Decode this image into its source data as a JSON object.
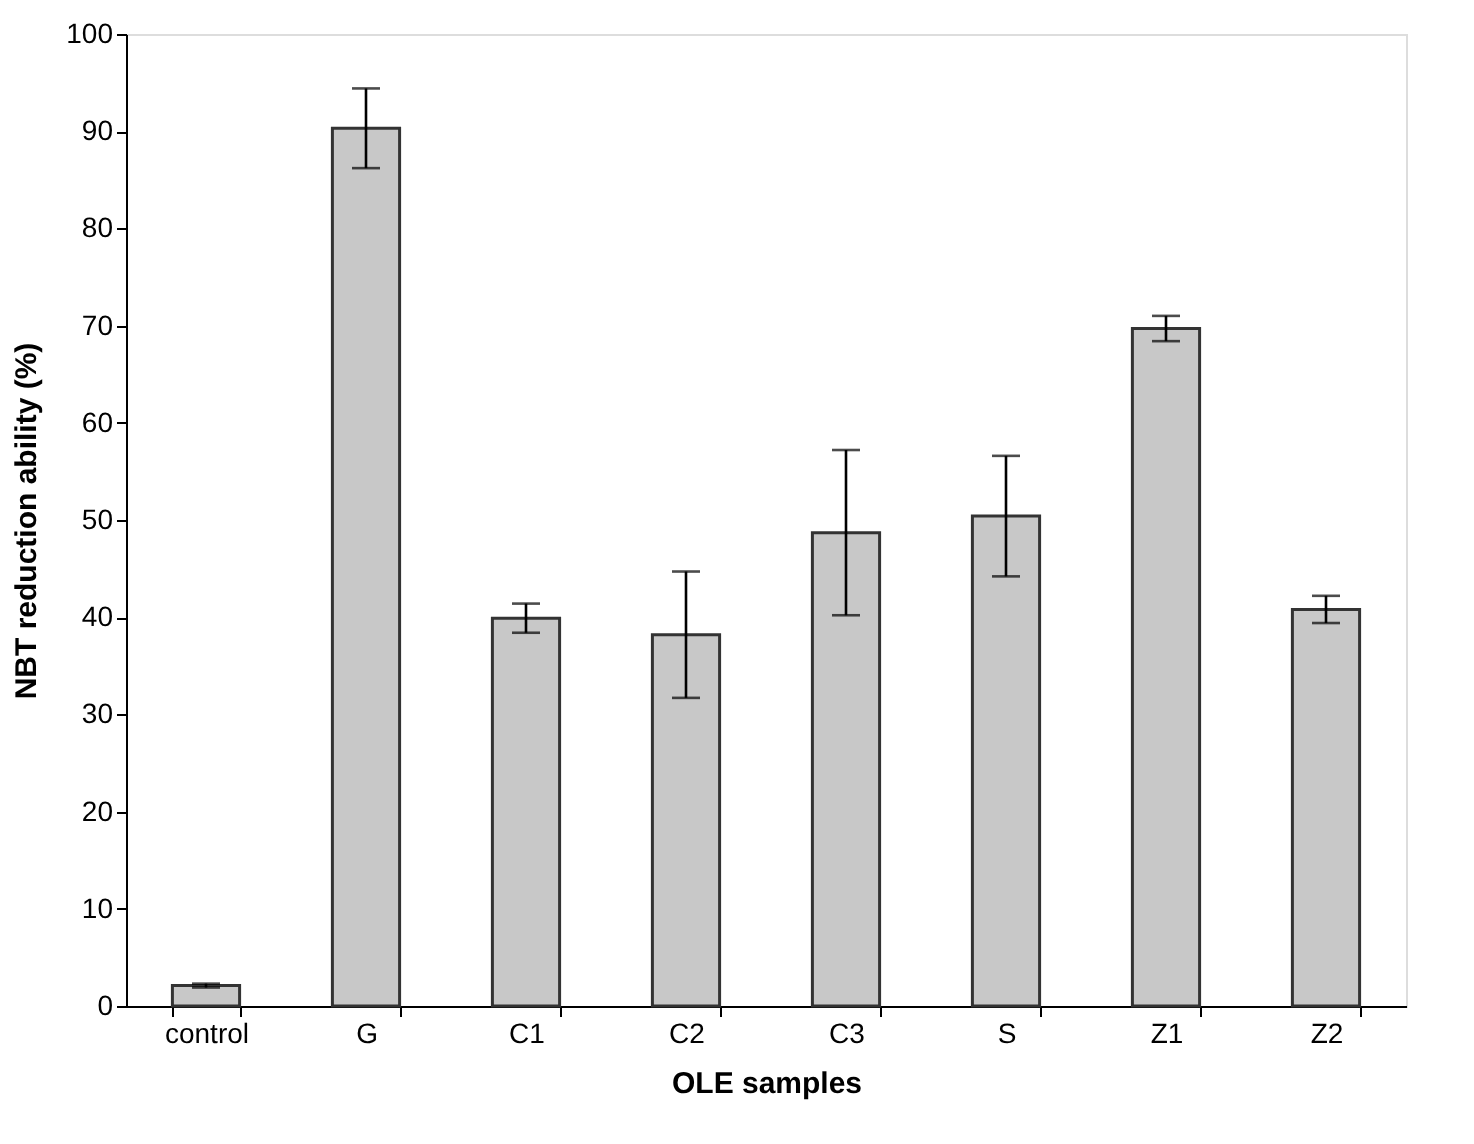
{
  "chart_data": {
    "type": "bar",
    "xlabel": "OLE samples",
    "ylabel": "NBT reduction ability (%)",
    "categories": [
      "control",
      "G",
      "C1",
      "C2",
      "C3",
      "S",
      "Z1",
      "Z2"
    ],
    "values": [
      2.1,
      90.3,
      39.9,
      38.2,
      48.7,
      50.4,
      69.7,
      40.8
    ],
    "errors": [
      0.2,
      4.1,
      1.5,
      6.5,
      8.5,
      6.2,
      1.3,
      1.4
    ],
    "color": "#c8c8c8",
    "ylim": [
      0,
      100
    ],
    "yticks": [
      0,
      10,
      20,
      30,
      40,
      50,
      60,
      70,
      80,
      90,
      100
    ],
    "grid": false
  }
}
